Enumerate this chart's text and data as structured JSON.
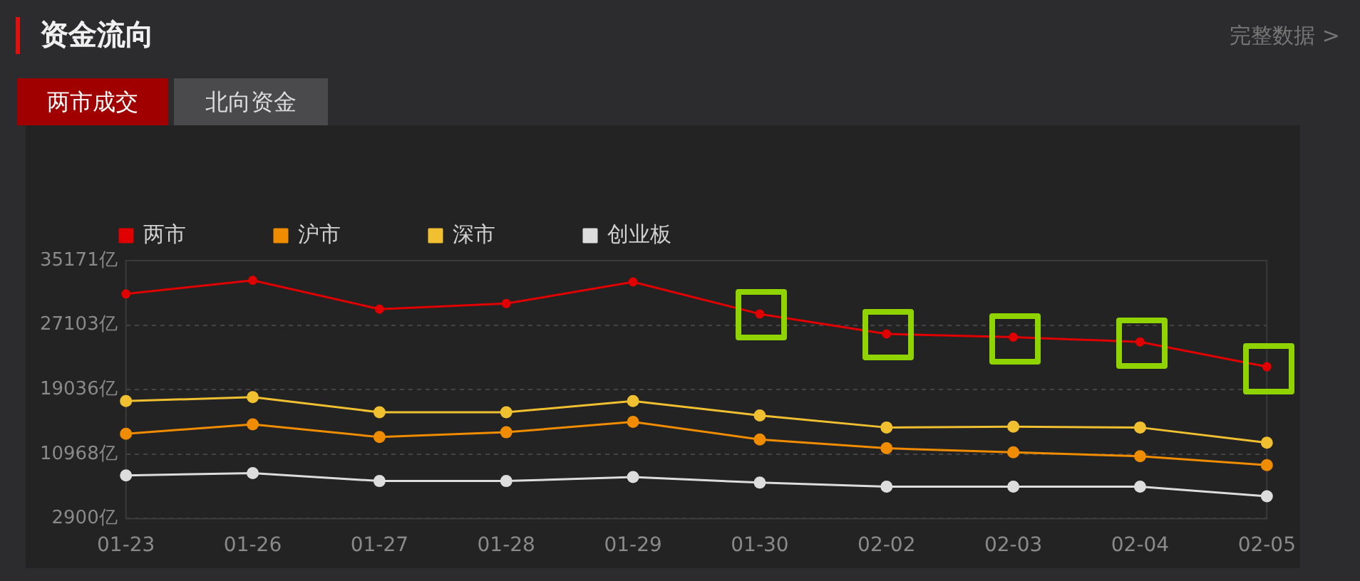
{
  "chart_data": {
    "type": "line",
    "title": "资金流向",
    "annotations": [
      "两市成交",
      "北向资金",
      "完整数据 >"
    ],
    "categories": [
      "01-23",
      "01-26",
      "01-27",
      "01-28",
      "01-29",
      "01-30",
      "02-02",
      "02-03",
      "02-04",
      "02-05"
    ],
    "series": [
      {
        "name": "两市",
        "color": "#e00000",
        "values": [
          31000,
          32700,
          29100,
          29800,
          32500,
          28500,
          26000,
          25600,
          25000,
          21900
        ]
      },
      {
        "name": "沪市",
        "color": "#f08c00",
        "values": [
          13500,
          14700,
          13100,
          13700,
          15000,
          12800,
          11700,
          11200,
          10700,
          9600
        ]
      },
      {
        "name": "深市",
        "color": "#f0c030",
        "values": [
          17600,
          18100,
          16200,
          16200,
          17600,
          15800,
          14300,
          14400,
          14300,
          12400
        ]
      },
      {
        "name": "创业板",
        "color": "#dddddd",
        "values": [
          8300,
          8600,
          7600,
          7600,
          8100,
          7400,
          6900,
          6900,
          6900,
          5700
        ]
      }
    ],
    "ylim": [
      2900,
      35171
    ],
    "yticks": [
      {
        "value": 2900,
        "label": "2900亿"
      },
      {
        "value": 10968,
        "label": "10968亿"
      },
      {
        "value": 19036,
        "label": "19036亿"
      },
      {
        "value": 27103,
        "label": "27103亿"
      },
      {
        "value": 35171,
        "label": "35171亿"
      }
    ],
    "grid": "y",
    "legend": "top left",
    "marker": "circle",
    "line_style": "solid"
  }
}
